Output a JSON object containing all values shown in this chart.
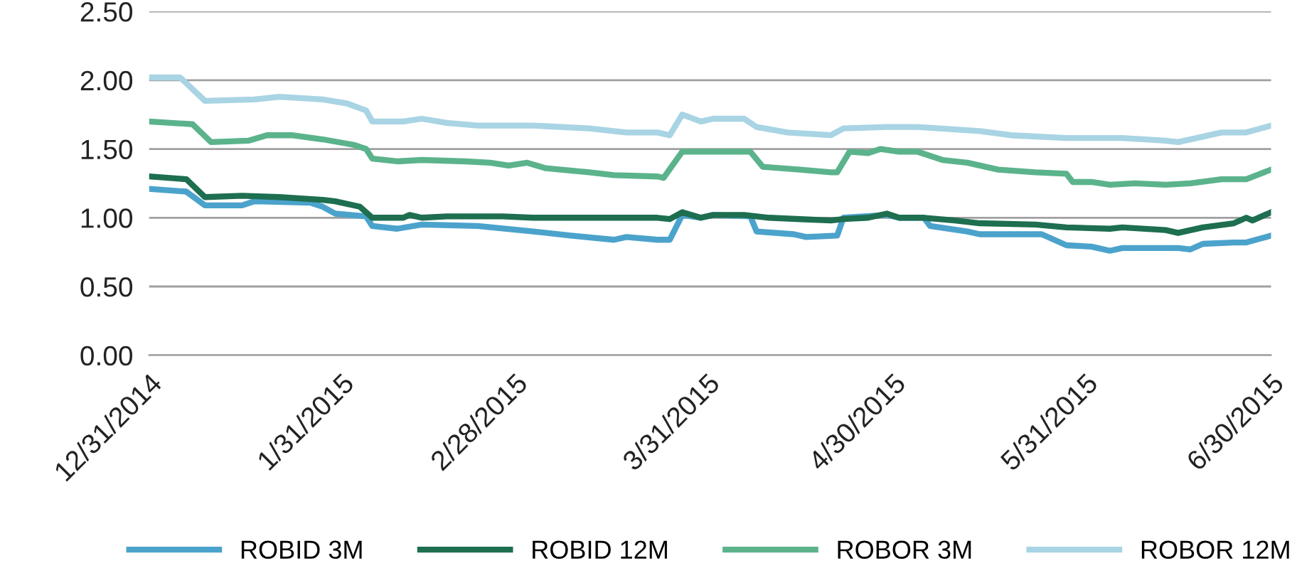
{
  "chart_data": {
    "type": "line",
    "ylim": [
      0,
      2.5
    ],
    "yticks": [
      {
        "value": 0,
        "label": "0.00"
      },
      {
        "value": 0.5,
        "label": "0.50"
      },
      {
        "value": 1,
        "label": "1.00"
      },
      {
        "value": 1.5,
        "label": "1.50"
      },
      {
        "value": 2,
        "label": "2.00"
      },
      {
        "value": 2.5,
        "label": "2.50"
      }
    ],
    "xlim": [
      "2014-12-31",
      "2015-06-30"
    ],
    "xticks": [
      {
        "value": "2014-12-31",
        "label": "12/31/2014"
      },
      {
        "value": "2015-01-31",
        "label": "1/31/2015"
      },
      {
        "value": "2015-02-28",
        "label": "2/28/2015"
      },
      {
        "value": "2015-03-31",
        "label": "3/31/2015"
      },
      {
        "value": "2015-04-30",
        "label": "4/30/2015"
      },
      {
        "value": "2015-05-31",
        "label": "5/31/2015"
      },
      {
        "value": "2015-06-30",
        "label": "6/30/2015"
      }
    ],
    "grid": "y",
    "legend": "bottom",
    "line_style": "solid",
    "marker": "none",
    "series": [
      {
        "name": "ROBID 3M",
        "color": "#4ba3cc",
        "x": [
          "2014-12-31",
          "2015-01-06",
          "2015-01-09",
          "2015-01-15",
          "2015-01-17",
          "2015-01-26",
          "2015-01-28",
          "2015-01-30",
          "2015-02-04",
          "2015-02-05",
          "2015-02-09",
          "2015-02-13",
          "2015-02-22",
          "2015-03-03",
          "2015-03-09",
          "2015-03-16",
          "2015-03-18",
          "2015-03-23",
          "2015-03-25",
          "2015-03-27",
          "2015-03-30",
          "2015-04-01",
          "2015-04-07",
          "2015-04-08",
          "2015-04-14",
          "2015-04-16",
          "2015-04-21",
          "2015-04-22",
          "2015-04-29",
          "2015-05-01",
          "2015-05-05",
          "2015-05-06",
          "2015-05-12",
          "2015-05-14",
          "2015-05-24",
          "2015-05-28",
          "2015-06-01",
          "2015-06-04",
          "2015-06-06",
          "2015-06-15",
          "2015-06-17",
          "2015-06-19",
          "2015-06-24",
          "2015-06-26",
          "2015-06-30"
        ],
        "values": [
          1.21,
          1.19,
          1.09,
          1.09,
          1.12,
          1.11,
          1.08,
          1.03,
          1.01,
          0.94,
          0.92,
          0.95,
          0.94,
          0.9,
          0.87,
          0.84,
          0.86,
          0.84,
          0.84,
          1.02,
          1.0,
          1.02,
          1.01,
          0.9,
          0.88,
          0.86,
          0.87,
          1.0,
          1.02,
          1.0,
          1.0,
          0.94,
          0.9,
          0.88,
          0.88,
          0.8,
          0.79,
          0.76,
          0.78,
          0.78,
          0.77,
          0.81,
          0.82,
          0.82,
          0.87
        ]
      },
      {
        "name": "ROBID 12M",
        "color": "#1e6e50",
        "x": [
          "2014-12-31",
          "2015-01-06",
          "2015-01-09",
          "2015-01-15",
          "2015-01-21",
          "2015-01-28",
          "2015-01-30",
          "2015-02-03",
          "2015-02-05",
          "2015-02-10",
          "2015-02-11",
          "2015-02-13",
          "2015-02-17",
          "2015-02-26",
          "2015-03-03",
          "2015-03-23",
          "2015-03-25",
          "2015-03-27",
          "2015-03-30",
          "2015-04-01",
          "2015-04-06",
          "2015-04-10",
          "2015-04-15",
          "2015-04-20",
          "2015-04-22",
          "2015-04-26",
          "2015-04-29",
          "2015-05-01",
          "2015-05-05",
          "2015-05-10",
          "2015-05-14",
          "2015-05-23",
          "2015-05-28",
          "2015-06-04",
          "2015-06-06",
          "2015-06-13",
          "2015-06-15",
          "2015-06-19",
          "2015-06-24",
          "2015-06-26",
          "2015-06-27",
          "2015-06-30"
        ],
        "values": [
          1.3,
          1.28,
          1.15,
          1.16,
          1.15,
          1.13,
          1.12,
          1.08,
          1.0,
          1.0,
          1.02,
          1.0,
          1.01,
          1.01,
          1.0,
          1.0,
          0.99,
          1.04,
          1.0,
          1.02,
          1.02,
          1.0,
          0.99,
          0.98,
          0.99,
          1.0,
          1.03,
          1.0,
          1.0,
          0.98,
          0.96,
          0.95,
          0.93,
          0.92,
          0.93,
          0.91,
          0.89,
          0.93,
          0.96,
          1.0,
          0.98,
          1.04
        ]
      },
      {
        "name": "ROBOR 3M",
        "color": "#5bb38c",
        "x": [
          "2014-12-31",
          "2015-01-07",
          "2015-01-10",
          "2015-01-16",
          "2015-01-19",
          "2015-01-23",
          "2015-01-28",
          "2015-02-02",
          "2015-02-04",
          "2015-02-05",
          "2015-02-09",
          "2015-02-13",
          "2015-02-20",
          "2015-02-24",
          "2015-02-27",
          "2015-03-02",
          "2015-03-05",
          "2015-03-12",
          "2015-03-16",
          "2015-03-23",
          "2015-03-24",
          "2015-03-27",
          "2015-04-06",
          "2015-04-07",
          "2015-04-09",
          "2015-04-15",
          "2015-04-20",
          "2015-04-21",
          "2015-04-23",
          "2015-04-26",
          "2015-04-28",
          "2015-05-01",
          "2015-05-04",
          "2015-05-08",
          "2015-05-12",
          "2015-05-17",
          "2015-05-23",
          "2015-05-28",
          "2015-05-29",
          "2015-06-01",
          "2015-06-04",
          "2015-06-08",
          "2015-06-13",
          "2015-06-17",
          "2015-06-22",
          "2015-06-26",
          "2015-06-30"
        ],
        "values": [
          1.7,
          1.68,
          1.55,
          1.56,
          1.6,
          1.6,
          1.57,
          1.53,
          1.5,
          1.43,
          1.41,
          1.42,
          1.41,
          1.4,
          1.38,
          1.4,
          1.36,
          1.33,
          1.31,
          1.3,
          1.29,
          1.48,
          1.48,
          1.48,
          1.37,
          1.35,
          1.33,
          1.33,
          1.48,
          1.47,
          1.5,
          1.48,
          1.48,
          1.42,
          1.4,
          1.35,
          1.33,
          1.32,
          1.26,
          1.26,
          1.24,
          1.25,
          1.24,
          1.25,
          1.28,
          1.28,
          1.35
        ]
      },
      {
        "name": "ROBOR 12M",
        "color": "#a8d4e4",
        "x": [
          "2014-12-31",
          "2015-01-05",
          "2015-01-09",
          "2015-01-17",
          "2015-01-21",
          "2015-01-28",
          "2015-02-01",
          "2015-02-04",
          "2015-02-05",
          "2015-02-10",
          "2015-02-13",
          "2015-02-17",
          "2015-02-22",
          "2015-03-03",
          "2015-03-12",
          "2015-03-18",
          "2015-03-23",
          "2015-03-25",
          "2015-03-27",
          "2015-03-30",
          "2015-04-01",
          "2015-04-06",
          "2015-04-08",
          "2015-04-13",
          "2015-04-20",
          "2015-04-22",
          "2015-04-29",
          "2015-05-04",
          "2015-05-14",
          "2015-05-19",
          "2015-05-28",
          "2015-06-06",
          "2015-06-13",
          "2015-06-15",
          "2015-06-18",
          "2015-06-22",
          "2015-06-26",
          "2015-06-30"
        ],
        "values": [
          2.02,
          2.02,
          1.85,
          1.86,
          1.88,
          1.86,
          1.83,
          1.78,
          1.7,
          1.7,
          1.72,
          1.69,
          1.67,
          1.67,
          1.65,
          1.62,
          1.62,
          1.6,
          1.75,
          1.7,
          1.72,
          1.72,
          1.66,
          1.62,
          1.6,
          1.65,
          1.66,
          1.66,
          1.63,
          1.6,
          1.58,
          1.58,
          1.56,
          1.55,
          1.58,
          1.62,
          1.62,
          1.67
        ]
      }
    ]
  }
}
